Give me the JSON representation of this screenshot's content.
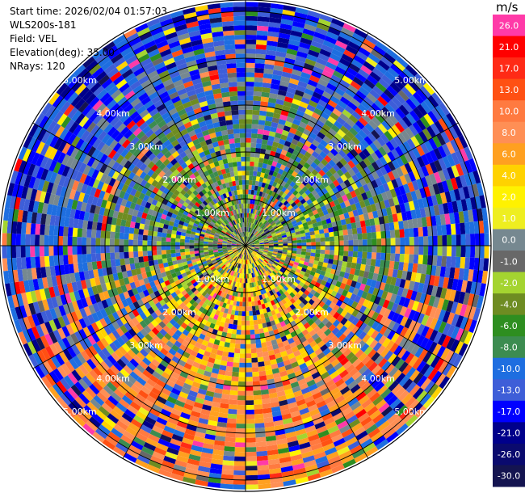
{
  "header": {
    "start_time": "Start time: 2026/02/04 01:57:03",
    "instrument": "WLS200s-181",
    "field": "Field: VEL",
    "elevation": "Elevation(deg): 35.00",
    "nrays": "NRays: 120"
  },
  "chart_data": {
    "type": "heatmap",
    "subtype": "ppi-polar",
    "field": "VEL",
    "units": "m/s",
    "n_rays": 120,
    "range_rings": [
      "1.00km",
      "2.00km",
      "3.00km",
      "4.00km",
      "5.00km"
    ],
    "range_ring_km": [
      1,
      2,
      3,
      4,
      5
    ],
    "max_range_km": 5.2,
    "colorbar": {
      "unit_label": "m/s",
      "bins": [
        {
          "label": "26.0",
          "color": "#ff3aa8"
        },
        {
          "label": "21.0",
          "color": "#ff0000"
        },
        {
          "label": "17.0",
          "color": "#ff2a16"
        },
        {
          "label": "13.0",
          "color": "#ff5013"
        },
        {
          "label": "10.0",
          "color": "#ff7a40"
        },
        {
          "label": "8.0",
          "color": "#ff8f55"
        },
        {
          "label": "6.0",
          "color": "#ffa020"
        },
        {
          "label": "4.0",
          "color": "#ffd200"
        },
        {
          "label": "2.0",
          "color": "#fff200"
        },
        {
          "label": "1.0",
          "color": "#eeee20"
        },
        {
          "label": "0.0",
          "color": "#768890"
        },
        {
          "label": "-1.0",
          "color": "#686868"
        },
        {
          "label": "-2.0",
          "color": "#a4d430"
        },
        {
          "label": "-4.0",
          "color": "#6e8c22"
        },
        {
          "label": "-6.0",
          "color": "#2e8e20"
        },
        {
          "label": "-8.0",
          "color": "#3c8c50"
        },
        {
          "label": "-10.0",
          "color": "#1e6ee0"
        },
        {
          "label": "-13.0",
          "color": "#3e5ed8"
        },
        {
          "label": "-17.0",
          "color": "#0000ff"
        },
        {
          "label": "-21.0",
          "color": "#00008b"
        },
        {
          "label": "-26.0",
          "color": "#0a0a6e"
        },
        {
          "label": "-30.0",
          "color": "#141450"
        }
      ]
    },
    "radial_bands_km": [
      {
        "from": 0.0,
        "to": 1.0,
        "dominant": [
          "-1.0",
          "-2.0",
          "-4.0",
          "-6.0",
          "0.0",
          "-8.0"
        ],
        "south_dominant": [
          "2.0",
          "4.0",
          "1.0",
          "6.0"
        ]
      },
      {
        "from": 1.0,
        "to": 2.2,
        "dominant": [
          "-2.0",
          "-4.0",
          "0.0",
          "-6.0",
          "-8.0",
          "-10.0"
        ],
        "south_dominant": [
          "4.0",
          "6.0",
          "2.0",
          "8.0"
        ]
      },
      {
        "from": 2.2,
        "to": 3.4,
        "dominant": [
          "-10.0",
          "-13.0",
          "-8.0",
          "-4.0",
          "0.0"
        ],
        "south_dominant": [
          "6.0",
          "8.0",
          "10.0",
          "4.0"
        ]
      },
      {
        "from": 3.4,
        "to": 4.3,
        "dominant": [
          "-13.0",
          "-17.0",
          "-10.0",
          "0.0"
        ],
        "south_dominant": [
          "8.0",
          "10.0",
          "6.0",
          "13.0"
        ]
      },
      {
        "from": 4.3,
        "to": 5.2,
        "dominant": [
          "-17.0",
          "-13.0",
          "-21.0",
          "-10.0"
        ],
        "south_dominant": [
          "10.0",
          "8.0",
          "13.0",
          "6.0"
        ]
      }
    ]
  }
}
